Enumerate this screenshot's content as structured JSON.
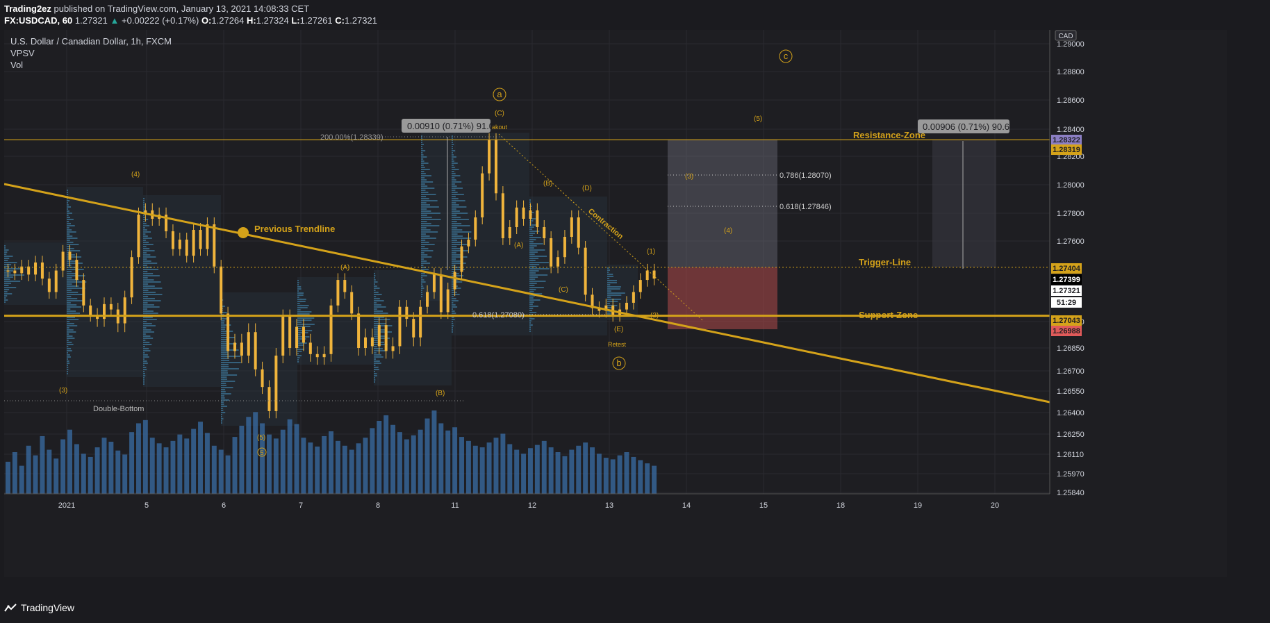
{
  "header": {
    "author": "Trading2ez",
    "published_text": "published on TradingView.com, January 13, 2021 14:08:33 CET",
    "symbol": "FX:USDCAD, 60",
    "last": "1.27321",
    "change": "+0.00222 (+0.17%)",
    "o_label": "O:",
    "o": "1.27264",
    "h_label": "H:",
    "h": "1.27324",
    "l_label": "L:",
    "l": "1.27261",
    "c_label": "C:",
    "c": "1.27321"
  },
  "legend": {
    "title": "U.S. Dollar / Canadian Dollar, 1h, FXCM",
    "indicator1": "VPSV",
    "indicator2": "Vol"
  },
  "footer": {
    "brand": "TradingView"
  },
  "colors": {
    "accent": "#d4a21a",
    "candle": "#f0b43c",
    "volume": "#3a6ea5",
    "background": "#1e1e22",
    "support_box": "#b04a4a",
    "target_box": "#6a6a78"
  },
  "chart_data": {
    "type": "candlestick",
    "currency_label": "CAD",
    "price_axis": {
      "ticks": [
        "1.29000",
        "1.28800",
        "1.28600",
        "1.28400",
        "1.28200",
        "1.28000",
        "1.27800",
        "1.27600",
        "1.27000",
        "1.26850",
        "1.26700",
        "1.26550",
        "1.26400",
        "1.26250",
        "1.26110",
        "1.25970",
        "1.25840"
      ],
      "ylim": [
        1.2584,
        1.2912
      ]
    },
    "time_axis": {
      "ticks": [
        "2021",
        "5",
        "6",
        "7",
        "8",
        "11",
        "12",
        "13",
        "14",
        "15",
        "18",
        "19",
        "20"
      ]
    },
    "price_badges": [
      {
        "value": "1.28322",
        "color": "#8c7fc4"
      },
      {
        "value": "1.28319",
        "color": "#d4a21a"
      },
      {
        "value": "1.27404",
        "color": "#d4a21a"
      },
      {
        "value": "1.27399",
        "color": "#000000"
      },
      {
        "value": "1.27321",
        "color": "#ffffff"
      },
      {
        "value": "51:29",
        "color": "#ffffff"
      },
      {
        "value": "1.27043",
        "color": "#d4a21a"
      },
      {
        "value": "1.26988",
        "color": "#e05a5a"
      }
    ],
    "levels": [
      {
        "name": "Resistance-Zone",
        "price": 1.28322
      },
      {
        "name": "Trigger-Line",
        "price": 1.27404
      },
      {
        "name": "Support-Zone",
        "price": 1.27043
      }
    ],
    "measurements": [
      {
        "text": "0.00910 (0.71%) 91.0"
      },
      {
        "text": "0.00906 (0.71%) 90.6"
      }
    ],
    "fib_labels": [
      "200.00%(1.28339)",
      "0.786(1.28070)",
      "0.618(1.27846)",
      "0.618(1.27080)"
    ],
    "annotations": {
      "previous_trendline": "Previous Trendline",
      "double_bottom": "Double-Bottom",
      "contraction": "Contraction",
      "breakout": "akout",
      "retest": "Retest"
    },
    "wave_labels": [
      "(4)",
      "(3)",
      "(5)",
      "5",
      "(A)",
      "(B)",
      "(C)",
      "a",
      "(A)",
      "(B)",
      "(C)",
      "(D)",
      "(E)",
      "b",
      "(1)",
      "(2)",
      "(3)",
      "(4)",
      "(5)",
      "c"
    ],
    "close_series": [
      1.2738,
      1.2736,
      1.2741,
      1.2735,
      1.2744,
      1.2732,
      1.2722,
      1.2738,
      1.2752,
      1.2746,
      1.2731,
      1.2712,
      1.2705,
      1.2702,
      1.2713,
      1.2709,
      1.2699,
      1.2718,
      1.2748,
      1.2779,
      1.2782,
      1.2776,
      1.2779,
      1.2767,
      1.2754,
      1.2761,
      1.2749,
      1.2768,
      1.2754,
      1.2772,
      1.2741,
      1.2706,
      1.2683,
      1.2688,
      1.268,
      1.2694,
      1.2671,
      1.2658,
      1.2641,
      1.268,
      1.2704,
      1.2685,
      1.2697,
      1.2688,
      1.2681,
      1.2679,
      1.2681,
      1.2712,
      1.2731,
      1.2722,
      1.2706,
      1.2685,
      1.2691,
      1.2686,
      1.2698,
      1.2683,
      1.2686,
      1.2711,
      1.2702,
      1.2691,
      1.2711,
      1.2722,
      1.2735,
      1.2707,
      1.2724,
      1.2737,
      1.2756,
      1.2761,
      1.2777,
      1.2808,
      1.2832,
      1.2794,
      1.2762,
      1.277,
      1.2784,
      1.2776,
      1.2782,
      1.277,
      1.2762,
      1.2741,
      1.2748,
      1.2763,
      1.2777,
      1.2755,
      1.272,
      1.271,
      1.2708,
      1.2712,
      1.2705,
      1.2709,
      1.2714,
      1.2722,
      1.2731,
      1.2738,
      1.2732
    ],
    "volume_series": [
      40,
      52,
      35,
      60,
      48,
      72,
      55,
      44,
      68,
      80,
      62,
      50,
      46,
      58,
      70,
      65,
      54,
      49,
      77,
      88,
      92,
      70,
      63,
      58,
      66,
      74,
      69,
      81,
      90,
      76,
      60,
      55,
      48,
      71,
      85,
      96,
      102,
      88,
      74,
      69,
      80,
      93,
      87,
      70,
      64,
      59,
      72,
      78,
      66,
      60,
      55,
      63,
      70,
      82,
      91,
      98,
      86,
      77,
      68,
      73,
      80,
      94,
      104,
      88,
      79,
      83,
      71,
      66,
      60,
      58,
      64,
      70,
      75,
      62,
      55,
      50,
      57,
      61,
      66,
      58,
      52,
      47,
      55,
      60,
      64,
      58,
      50,
      45,
      43,
      48,
      52,
      46,
      42,
      38,
      35
    ]
  }
}
